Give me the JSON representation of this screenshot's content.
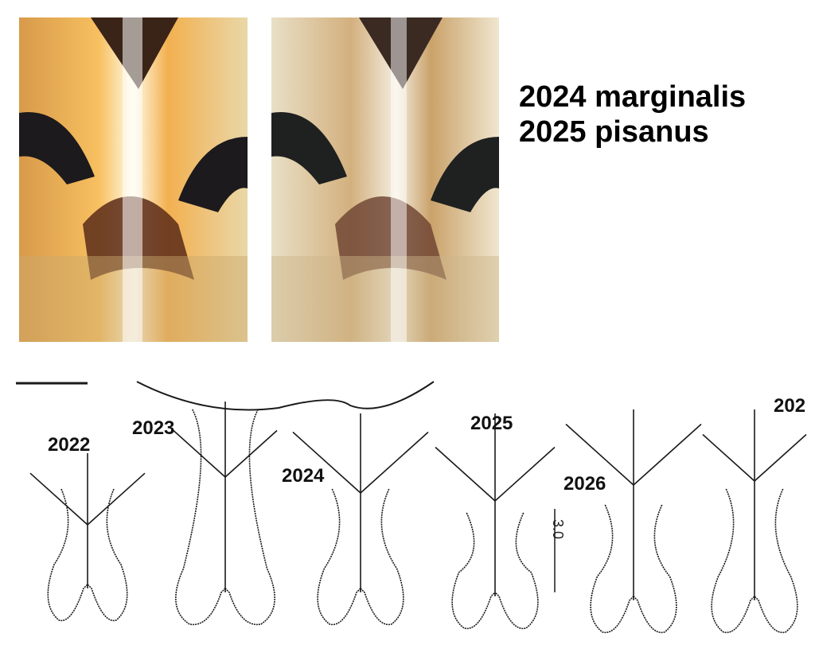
{
  "legend": {
    "line1": "2024 marginalis",
    "line2": "2025 pisanus"
  },
  "photos": [
    {
      "name": "photo-specimen-2024"
    },
    {
      "name": "photo-specimen-2025"
    }
  ],
  "drawing_labels": [
    "2022",
    "2023",
    "2024",
    "2025",
    "2026",
    "202"
  ],
  "scale_label": "3.0",
  "colors": {
    "line": "#1a1a1a",
    "photo_dark": "#2a1a14",
    "photo_amber": "#c87a2a",
    "photo_pale": "#efe6cf"
  }
}
